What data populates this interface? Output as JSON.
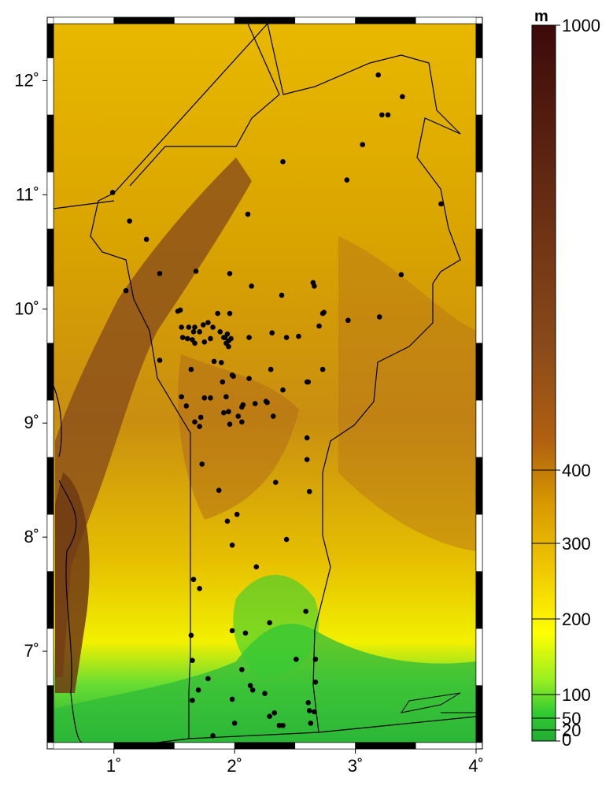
{
  "map": {
    "lon_range": [
      0.5,
      4.0
    ],
    "lat_range": [
      6.2,
      12.5
    ],
    "x_ticks": [
      {
        "value": 1,
        "label": "1˚"
      },
      {
        "value": 2,
        "label": "2˚"
      },
      {
        "value": 3,
        "label": "3˚"
      },
      {
        "value": 4,
        "label": "4˚"
      }
    ],
    "y_ticks": [
      {
        "value": 7,
        "label": "7˚"
      },
      {
        "value": 8,
        "label": "8˚"
      },
      {
        "value": 9,
        "label": "9˚"
      },
      {
        "value": 10,
        "label": "10˚"
      },
      {
        "value": 11,
        "label": "11˚"
      },
      {
        "value": 12,
        "label": "12˚"
      }
    ],
    "station_color": "#000000",
    "border_color": "#000000",
    "stations": [
      [
        3.19,
        12.05
      ],
      [
        3.39,
        11.86
      ],
      [
        3.22,
        11.7
      ],
      [
        3.27,
        11.7
      ],
      [
        3.06,
        11.44
      ],
      [
        2.4,
        11.29
      ],
      [
        2.93,
        11.13
      ],
      [
        3.71,
        10.92
      ],
      [
        0.99,
        11.02
      ],
      [
        1.13,
        10.77
      ],
      [
        1.27,
        10.61
      ],
      [
        2.11,
        10.83
      ],
      [
        1.38,
        10.31
      ],
      [
        1.68,
        10.33
      ],
      [
        1.96,
        10.31
      ],
      [
        1.1,
        10.16
      ],
      [
        2.14,
        10.2
      ],
      [
        2.39,
        10.12
      ],
      [
        2.66,
        10.2
      ],
      [
        2.65,
        10.23
      ],
      [
        3.38,
        10.3
      ],
      [
        2.73,
        9.96
      ],
      [
        2.74,
        9.97
      ],
      [
        2.94,
        9.9
      ],
      [
        3.2,
        9.93
      ],
      [
        1.53,
        9.98
      ],
      [
        1.55,
        9.99
      ],
      [
        1.86,
        9.96
      ],
      [
        1.96,
        9.96
      ],
      [
        1.56,
        9.84
      ],
      [
        1.62,
        9.84
      ],
      [
        1.67,
        9.84
      ],
      [
        1.74,
        9.86
      ],
      [
        1.78,
        9.88
      ],
      [
        1.82,
        9.84
      ],
      [
        1.66,
        9.8
      ],
      [
        1.71,
        9.8
      ],
      [
        1.88,
        9.8
      ],
      [
        1.57,
        9.75
      ],
      [
        1.61,
        9.74
      ],
      [
        1.65,
        9.73
      ],
      [
        1.67,
        9.7
      ],
      [
        1.75,
        9.71
      ],
      [
        1.8,
        9.74
      ],
      [
        1.91,
        9.75
      ],
      [
        1.93,
        9.7
      ],
      [
        1.95,
        9.72
      ],
      [
        1.97,
        9.74
      ],
      [
        1.94,
        9.78
      ],
      [
        1.92,
        9.75
      ],
      [
        1.95,
        9.67
      ],
      [
        2.12,
        9.75
      ],
      [
        2.31,
        9.79
      ],
      [
        2.43,
        9.75
      ],
      [
        2.53,
        9.76
      ],
      [
        2.7,
        9.85
      ],
      [
        1.38,
        9.55
      ],
      [
        1.64,
        9.47
      ],
      [
        1.83,
        9.54
      ],
      [
        1.89,
        9.53
      ],
      [
        1.98,
        9.42
      ],
      [
        1.99,
        9.41
      ],
      [
        2.12,
        9.39
      ],
      [
        2.3,
        9.47
      ],
      [
        2.4,
        9.29
      ],
      [
        2.6,
        9.36
      ],
      [
        2.61,
        9.36
      ],
      [
        2.73,
        9.47
      ],
      [
        1.9,
        9.36
      ],
      [
        1.56,
        9.23
      ],
      [
        1.6,
        9.15
      ],
      [
        1.75,
        9.22
      ],
      [
        1.8,
        9.22
      ],
      [
        1.93,
        9.23
      ],
      [
        2.06,
        9.14
      ],
      [
        2.07,
        9.16
      ],
      [
        2.17,
        9.17
      ],
      [
        2.26,
        9.19
      ],
      [
        2.27,
        9.18
      ],
      [
        1.72,
        9.05
      ],
      [
        1.67,
        9.01
      ],
      [
        1.71,
        8.97
      ],
      [
        1.91,
        9.09
      ],
      [
        1.95,
        9.1
      ],
      [
        2.03,
        9.06
      ],
      [
        1.96,
        8.99
      ],
      [
        2.06,
        9.01
      ],
      [
        2.32,
        9.06
      ],
      [
        2.6,
        8.87
      ],
      [
        2.6,
        8.68
      ],
      [
        1.73,
        8.64
      ],
      [
        2.34,
        8.48
      ],
      [
        2.62,
        8.4
      ],
      [
        1.87,
        8.41
      ],
      [
        2.02,
        8.2
      ],
      [
        1.94,
        8.14
      ],
      [
        1.98,
        7.93
      ],
      [
        2.43,
        7.98
      ],
      [
        2.18,
        7.74
      ],
      [
        1.66,
        7.63
      ],
      [
        1.71,
        7.55
      ],
      [
        2.59,
        7.35
      ],
      [
        2.29,
        7.25
      ],
      [
        1.98,
        7.18
      ],
      [
        2.09,
        7.16
      ],
      [
        1.64,
        7.14
      ],
      [
        1.65,
        6.92
      ],
      [
        2.51,
        6.93
      ],
      [
        2.67,
        6.93
      ],
      [
        1.78,
        6.76
      ],
      [
        2.06,
        6.84
      ],
      [
        1.7,
        6.66
      ],
      [
        1.98,
        6.58
      ],
      [
        2.13,
        6.7
      ],
      [
        2.15,
        6.66
      ],
      [
        2.25,
        6.63
      ],
      [
        2.67,
        6.73
      ],
      [
        1.65,
        6.57
      ],
      [
        2.0,
        6.37
      ],
      [
        2.29,
        6.43
      ],
      [
        2.33,
        6.46
      ],
      [
        2.61,
        6.55
      ],
      [
        2.37,
        6.35
      ],
      [
        2.4,
        6.35
      ],
      [
        2.62,
        6.48
      ],
      [
        2.66,
        6.47
      ],
      [
        2.63,
        6.37
      ],
      [
        1.82,
        6.26
      ]
    ]
  },
  "colorbar": {
    "unit": "m",
    "min": 0,
    "max": 1000,
    "ticks": [
      {
        "value": 0,
        "label": "0"
      },
      {
        "value": 20,
        "label": "20"
      },
      {
        "value": 50,
        "label": "50"
      },
      {
        "value": 100,
        "label": "100"
      },
      {
        "value": 200,
        "label": "200"
      },
      {
        "value": 300,
        "label": "300"
      },
      {
        "value": 400,
        "label": "400"
      },
      {
        "value": 1000,
        "label": "1000"
      }
    ],
    "colors": [
      "#1a9b1a",
      "#33cc33",
      "#99ee22",
      "#ffff00",
      "#e6b400",
      "#cc8f00",
      "#8a4a1a",
      "#3d0a0a"
    ]
  }
}
